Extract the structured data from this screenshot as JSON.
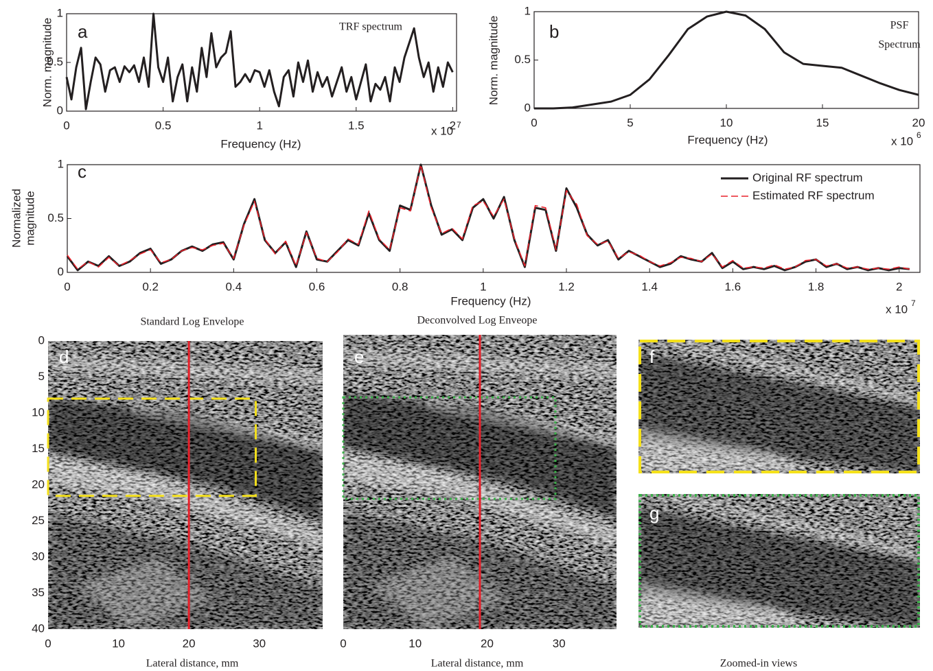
{
  "chart_data": [
    {
      "type": "line",
      "panel_label": "a",
      "annotation": [
        "TRF spectrum"
      ],
      "xlabel": "Frequency (Hz)",
      "ylabel": [
        "Norm. magnitude"
      ],
      "x_scale": "x 10",
      "x_scale_exp": "7",
      "xlim": [
        0,
        2.02
      ],
      "ylim": [
        0,
        1
      ],
      "xticks": [
        0,
        0.5,
        1,
        1.5,
        2
      ],
      "yticks": [
        0,
        0.5,
        1
      ],
      "x": [
        0,
        0.025,
        0.05,
        0.075,
        0.1,
        0.125,
        0.15,
        0.175,
        0.2,
        0.225,
        0.25,
        0.275,
        0.3,
        0.325,
        0.35,
        0.375,
        0.4,
        0.425,
        0.45,
        0.475,
        0.5,
        0.525,
        0.55,
        0.575,
        0.6,
        0.625,
        0.65,
        0.675,
        0.7,
        0.725,
        0.75,
        0.775,
        0.8,
        0.825,
        0.85,
        0.875,
        0.9,
        0.925,
        0.95,
        0.975,
        1,
        1.025,
        1.05,
        1.075,
        1.1,
        1.125,
        1.15,
        1.175,
        1.2,
        1.225,
        1.25,
        1.275,
        1.3,
        1.325,
        1.35,
        1.375,
        1.4,
        1.425,
        1.45,
        1.475,
        1.5,
        1.525,
        1.55,
        1.575,
        1.6,
        1.625,
        1.65,
        1.675,
        1.7,
        1.725,
        1.75,
        1.775,
        1.8,
        1.825,
        1.85,
        1.875,
        1.9,
        1.925,
        1.95,
        1.975,
        2
      ],
      "series": [
        {
          "color": "#231f20",
          "values": [
            0.35,
            0.12,
            0.45,
            0.65,
            0.02,
            0.3,
            0.55,
            0.48,
            0.2,
            0.42,
            0.45,
            0.3,
            0.46,
            0.4,
            0.47,
            0.3,
            0.55,
            0.25,
            1,
            0.45,
            0.3,
            0.55,
            0.1,
            0.35,
            0.48,
            0.1,
            0.45,
            0.2,
            0.65,
            0.35,
            0.8,
            0.45,
            0.55,
            0.6,
            0.82,
            0.25,
            0.3,
            0.38,
            0.3,
            0.42,
            0.4,
            0.25,
            0.42,
            0.2,
            0.05,
            0.35,
            0.42,
            0.15,
            0.5,
            0.3,
            0.52,
            0.2,
            0.4,
            0.25,
            0.35,
            0.15,
            0.3,
            0.45,
            0.2,
            0.35,
            0.12,
            0.3,
            0.48,
            0.1,
            0.28,
            0.22,
            0.35,
            0.1,
            0.45,
            0.3,
            0.55,
            0.7,
            0.85,
            0.55,
            0.35,
            0.5,
            0.2,
            0.45,
            0.25,
            0.5,
            0.4
          ]
        }
      ]
    },
    {
      "type": "line",
      "panel_label": "b",
      "annotation": [
        "PSF",
        "Spectrum"
      ],
      "xlabel": "Frequency (Hz)",
      "ylabel": [
        "Norm. magnitude"
      ],
      "x_scale": "x 10",
      "x_scale_exp": "6",
      "xlim": [
        0,
        20
      ],
      "ylim": [
        0,
        1
      ],
      "xticks": [
        0,
        5,
        10,
        15,
        20
      ],
      "yticks": [
        0,
        0.5,
        1
      ],
      "x": [
        0,
        1,
        2,
        3,
        4,
        5,
        6,
        7,
        8,
        9,
        10,
        11,
        12,
        13,
        14,
        15,
        16,
        17,
        18,
        19,
        20
      ],
      "series": [
        {
          "color": "#231f20",
          "values": [
            0,
            0,
            0.01,
            0.04,
            0.07,
            0.14,
            0.3,
            0.55,
            0.82,
            0.95,
            1,
            0.96,
            0.82,
            0.58,
            0.46,
            0.44,
            0.42,
            0.34,
            0.26,
            0.19,
            0.14
          ]
        }
      ]
    },
    {
      "type": "line",
      "panel_label": "c",
      "xlabel": "Frequency (Hz)",
      "ylabel": [
        "Normalized",
        "magnitude"
      ],
      "x_scale": "x 10",
      "x_scale_exp": "7",
      "xlim": [
        0,
        2.05
      ],
      "ylim": [
        0,
        1
      ],
      "xticks": [
        0,
        0.2,
        0.4,
        0.6,
        0.8,
        1,
        1.2,
        1.4,
        1.6,
        1.8,
        2
      ],
      "yticks": [
        0,
        0.5,
        1
      ],
      "legend": "upper right",
      "x": [
        0,
        0.025,
        0.05,
        0.075,
        0.1,
        0.125,
        0.15,
        0.175,
        0.2,
        0.225,
        0.25,
        0.275,
        0.3,
        0.325,
        0.35,
        0.375,
        0.4,
        0.425,
        0.45,
        0.475,
        0.5,
        0.525,
        0.55,
        0.575,
        0.6,
        0.625,
        0.65,
        0.675,
        0.7,
        0.725,
        0.75,
        0.775,
        0.8,
        0.825,
        0.85,
        0.875,
        0.9,
        0.925,
        0.95,
        0.975,
        1,
        1.025,
        1.05,
        1.075,
        1.1,
        1.125,
        1.15,
        1.175,
        1.2,
        1.225,
        1.25,
        1.275,
        1.3,
        1.325,
        1.35,
        1.375,
        1.4,
        1.425,
        1.45,
        1.475,
        1.5,
        1.525,
        1.55,
        1.575,
        1.6,
        1.625,
        1.65,
        1.675,
        1.7,
        1.725,
        1.75,
        1.775,
        1.8,
        1.825,
        1.85,
        1.875,
        1.9,
        1.925,
        1.95,
        1.975,
        2,
        2.025
      ],
      "series": [
        {
          "name": "Original RF spectrum",
          "color": "#231f20",
          "dash": false,
          "values": [
            0.15,
            0.02,
            0.1,
            0.06,
            0.15,
            0.06,
            0.1,
            0.18,
            0.22,
            0.08,
            0.12,
            0.2,
            0.24,
            0.2,
            0.26,
            0.28,
            0.12,
            0.45,
            0.68,
            0.3,
            0.18,
            0.28,
            0.05,
            0.38,
            0.12,
            0.1,
            0.2,
            0.3,
            0.25,
            0.55,
            0.3,
            0.2,
            0.62,
            0.58,
            1,
            0.62,
            0.35,
            0.4,
            0.3,
            0.6,
            0.68,
            0.5,
            0.7,
            0.3,
            0.05,
            0.6,
            0.58,
            0.2,
            0.78,
            0.6,
            0.35,
            0.25,
            0.3,
            0.12,
            0.2,
            0.15,
            0.1,
            0.05,
            0.08,
            0.15,
            0.12,
            0.1,
            0.18,
            0.04,
            0.1,
            0.03,
            0.05,
            0.03,
            0.06,
            0.02,
            0.05,
            0.1,
            0.12,
            0.05,
            0.08,
            0.03,
            0.05,
            0.02,
            0.04,
            0.02,
            0.04,
            0.03
          ]
        },
        {
          "name": "Estimated RF spectrum",
          "color": "#e8202a",
          "dash": true,
          "values": [
            0.16,
            0.03,
            0.1,
            0.05,
            0.14,
            0.06,
            0.11,
            0.17,
            0.21,
            0.09,
            0.12,
            0.2,
            0.23,
            0.21,
            0.25,
            0.27,
            0.13,
            0.44,
            0.66,
            0.31,
            0.17,
            0.29,
            0.06,
            0.37,
            0.13,
            0.1,
            0.19,
            0.31,
            0.26,
            0.57,
            0.31,
            0.21,
            0.6,
            0.57,
            1,
            0.6,
            0.36,
            0.41,
            0.31,
            0.62,
            0.66,
            0.52,
            0.68,
            0.31,
            0.06,
            0.62,
            0.6,
            0.21,
            0.76,
            0.63,
            0.34,
            0.26,
            0.29,
            0.13,
            0.19,
            0.16,
            0.1,
            0.06,
            0.09,
            0.14,
            0.13,
            0.1,
            0.17,
            0.05,
            0.11,
            0.04,
            0.05,
            0.04,
            0.07,
            0.03,
            0.05,
            0.11,
            0.12,
            0.06,
            0.08,
            0.04,
            0.05,
            0.03,
            0.04,
            0.03,
            0.05,
            0.03
          ]
        }
      ]
    },
    {
      "type": "image",
      "panel_label": "d",
      "title": "Standard Log Envelope",
      "xlabel": "Lateral distance, mm",
      "xlim": [
        0,
        39
      ],
      "ylim": [
        0,
        40
      ],
      "xticks": [
        0,
        10,
        20,
        30
      ],
      "yticks": [
        0,
        5,
        10,
        15,
        20,
        25,
        30,
        35,
        40
      ],
      "cursor_x": 20,
      "cursor_color": "#e8202a",
      "roi_x": [
        0,
        29.5
      ],
      "roi_y": [
        8,
        21.5
      ],
      "roi_color": "#f5e11a",
      "roi_style": "dashed"
    },
    {
      "type": "image",
      "panel_label": "e",
      "title": "Deconvolved Log Enveope",
      "xlabel": "Lateral distance, mm",
      "xlim": [
        0,
        38
      ],
      "ylim": [
        0,
        40
      ],
      "xticks": [
        0,
        10,
        20,
        30
      ],
      "cursor_x": 19,
      "cursor_color": "#e8202a",
      "roi_x": [
        0,
        29.5
      ],
      "roi_y": [
        8.5,
        22.3
      ],
      "roi_color": "#3cb04a",
      "roi_style": "dotted"
    },
    {
      "type": "image",
      "panel_label": "f",
      "border_color": "#f5e11a",
      "border_style": "dashed"
    },
    {
      "type": "image",
      "panel_label": "g",
      "border_color": "#3cb04a",
      "border_style": "dotted",
      "caption": "Zoomed-in views"
    }
  ]
}
